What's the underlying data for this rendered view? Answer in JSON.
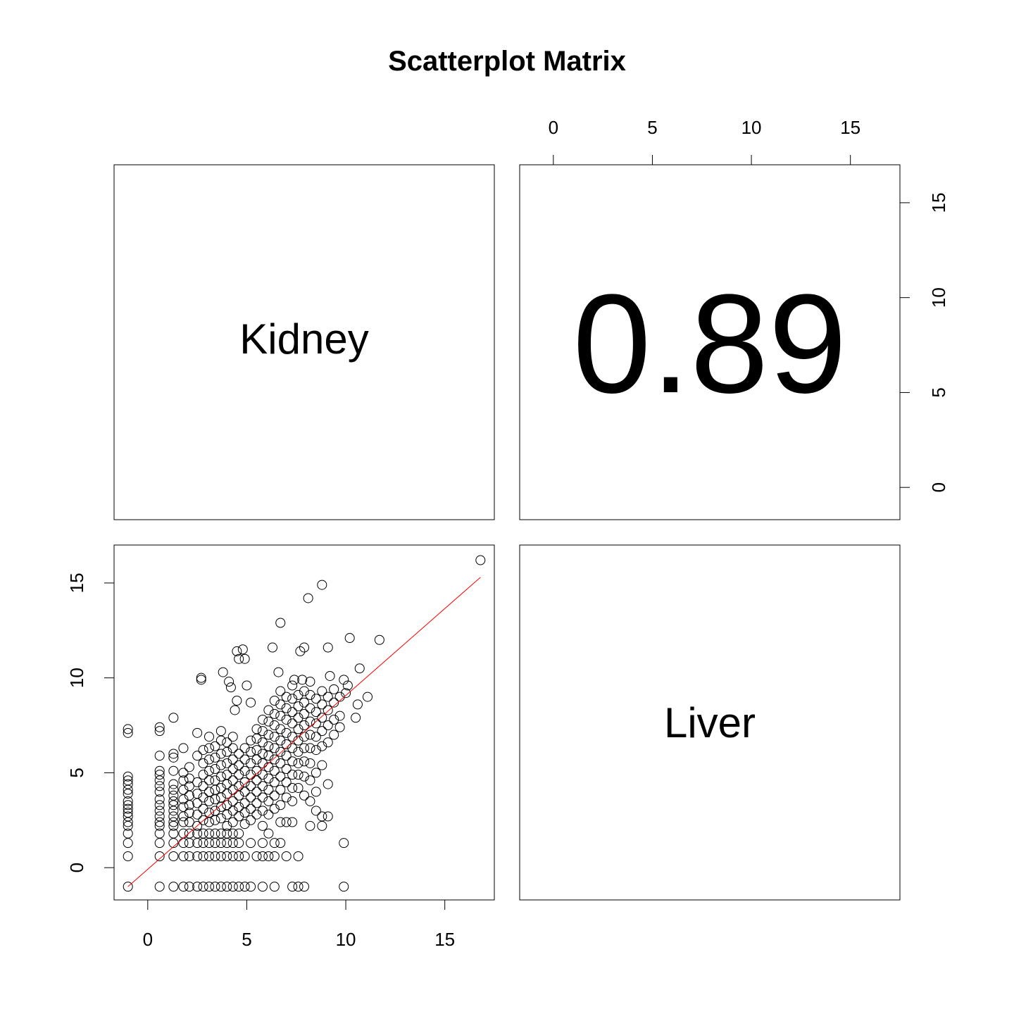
{
  "chart_data": {
    "type": "scatter",
    "title": "Scatterplot Matrix",
    "variables": [
      "Kidney",
      "Liver"
    ],
    "correlation": "0.89",
    "xlim": [
      -1.7,
      17.5
    ],
    "ylim": [
      -1.7,
      17.0
    ],
    "x_ticks": [
      "0",
      "5",
      "10",
      "15"
    ],
    "x_tick_values": [
      0,
      5,
      10,
      15
    ],
    "y_ticks": [
      "0",
      "5",
      "10",
      "15"
    ],
    "y_tick_values": [
      0,
      5,
      10,
      15
    ],
    "fit_line": {
      "x": [
        -1.0,
        16.8
      ],
      "y": [
        -1.0,
        15.3
      ],
      "color": "#ff0000"
    },
    "point_color": "#000000",
    "points": [
      [
        16.8,
        16.2
      ],
      [
        8.8,
        14.9
      ],
      [
        8.1,
        14.2
      ],
      [
        6.7,
        12.9
      ],
      [
        6.3,
        11.6
      ],
      [
        10.2,
        12.1
      ],
      [
        11.7,
        12.0
      ],
      [
        9.1,
        11.6
      ],
      [
        7.7,
        11.4
      ],
      [
        7.9,
        11.6
      ],
      [
        4.5,
        11.4
      ],
      [
        4.8,
        11.5
      ],
      [
        4.6,
        11.0
      ],
      [
        4.9,
        11.0
      ],
      [
        2.7,
        10.0
      ],
      [
        2.7,
        9.9
      ],
      [
        3.8,
        10.3
      ],
      [
        4.1,
        9.8
      ],
      [
        4.2,
        9.5
      ],
      [
        5.0,
        9.6
      ],
      [
        6.6,
        10.3
      ],
      [
        7.4,
        9.9
      ],
      [
        7.8,
        9.9
      ],
      [
        9.2,
        10.1
      ],
      [
        10.7,
        10.5
      ],
      [
        9.9,
        9.9
      ],
      [
        10.1,
        9.6
      ],
      [
        11.1,
        9.0
      ],
      [
        10.6,
        8.6
      ],
      [
        10.5,
        7.9
      ],
      [
        10.0,
        9.2
      ],
      [
        4.5,
        8.8
      ],
      [
        4.4,
        8.3
      ],
      [
        5.2,
        8.7
      ],
      [
        -1.0,
        7.3
      ],
      [
        -1.0,
        7.1
      ],
      [
        -1.0,
        4.8
      ],
      [
        -1.0,
        4.6
      ],
      [
        -1.0,
        4.4
      ],
      [
        -1.0,
        4.1
      ],
      [
        -1.0,
        3.9
      ],
      [
        -1.0,
        3.5
      ],
      [
        -1.0,
        3.3
      ],
      [
        -1.0,
        3.1
      ],
      [
        -1.0,
        2.9
      ],
      [
        -1.0,
        2.7
      ],
      [
        -1.0,
        2.4
      ],
      [
        -1.0,
        2.2
      ],
      [
        -1.0,
        1.8
      ],
      [
        -1.0,
        1.3
      ],
      [
        -1.0,
        0.6
      ],
      [
        -1.0,
        -1.0
      ],
      [
        0.6,
        7.4
      ],
      [
        0.6,
        7.2
      ],
      [
        0.6,
        5.9
      ],
      [
        0.6,
        5.1
      ],
      [
        0.6,
        4.9
      ],
      [
        0.6,
        4.6
      ],
      [
        0.6,
        4.3
      ],
      [
        0.6,
        4.0
      ],
      [
        0.6,
        3.6
      ],
      [
        0.6,
        3.3
      ],
      [
        0.6,
        3.0
      ],
      [
        0.6,
        2.7
      ],
      [
        0.6,
        2.4
      ],
      [
        0.6,
        2.2
      ],
      [
        0.6,
        1.8
      ],
      [
        0.6,
        1.3
      ],
      [
        0.6,
        0.6
      ],
      [
        0.6,
        -1.0
      ],
      [
        1.3,
        7.9
      ],
      [
        1.3,
        6.0
      ],
      [
        1.3,
        5.8
      ],
      [
        1.3,
        5.1
      ],
      [
        1.3,
        4.4
      ],
      [
        1.3,
        4.1
      ],
      [
        1.3,
        3.8
      ],
      [
        1.3,
        3.5
      ],
      [
        1.3,
        3.3
      ],
      [
        1.3,
        3.0
      ],
      [
        1.3,
        2.7
      ],
      [
        1.3,
        2.4
      ],
      [
        1.3,
        2.2
      ],
      [
        1.3,
        1.8
      ],
      [
        1.3,
        1.3
      ],
      [
        1.3,
        0.6
      ],
      [
        1.3,
        -1.0
      ],
      [
        1.8,
        6.3
      ],
      [
        1.8,
        5.0
      ],
      [
        1.8,
        4.6
      ],
      [
        1.8,
        4.1
      ],
      [
        1.8,
        3.6
      ],
      [
        1.8,
        3.2
      ],
      [
        1.8,
        2.7
      ],
      [
        1.8,
        2.4
      ],
      [
        1.8,
        1.8
      ],
      [
        1.8,
        1.3
      ],
      [
        1.8,
        0.6
      ],
      [
        1.8,
        -1.0
      ],
      [
        2.1,
        5.3
      ],
      [
        2.1,
        4.7
      ],
      [
        2.1,
        4.3
      ],
      [
        2.1,
        3.8
      ],
      [
        2.1,
        3.3
      ],
      [
        2.1,
        2.9
      ],
      [
        2.1,
        2.4
      ],
      [
        2.1,
        1.8
      ],
      [
        2.1,
        1.3
      ],
      [
        2.1,
        0.6
      ],
      [
        2.1,
        -1.0
      ],
      [
        2.5,
        7.1
      ],
      [
        2.5,
        5.9
      ],
      [
        2.5,
        4.5
      ],
      [
        2.5,
        3.9
      ],
      [
        2.5,
        3.4
      ],
      [
        2.5,
        2.8
      ],
      [
        2.5,
        2.2
      ],
      [
        2.5,
        1.8
      ],
      [
        2.5,
        1.3
      ],
      [
        2.5,
        0.6
      ],
      [
        2.5,
        -1.0
      ],
      [
        2.8,
        6.2
      ],
      [
        2.8,
        5.5
      ],
      [
        2.8,
        4.9
      ],
      [
        2.8,
        4.3
      ],
      [
        2.8,
        3.7
      ],
      [
        2.8,
        3.1
      ],
      [
        2.8,
        2.5
      ],
      [
        2.8,
        1.8
      ],
      [
        2.8,
        1.3
      ],
      [
        2.8,
        0.6
      ],
      [
        2.8,
        -1.0
      ],
      [
        3.1,
        6.9
      ],
      [
        3.1,
        6.3
      ],
      [
        3.1,
        5.7
      ],
      [
        3.1,
        5.1
      ],
      [
        3.1,
        4.6
      ],
      [
        3.1,
        4.0
      ],
      [
        3.1,
        3.5
      ],
      [
        3.1,
        2.9
      ],
      [
        3.1,
        2.4
      ],
      [
        3.1,
        1.8
      ],
      [
        3.1,
        1.3
      ],
      [
        3.1,
        0.6
      ],
      [
        3.1,
        -1.0
      ],
      [
        3.4,
        6.4
      ],
      [
        3.4,
        5.8
      ],
      [
        3.4,
        5.2
      ],
      [
        3.4,
        4.6
      ],
      [
        3.4,
        4.1
      ],
      [
        3.4,
        3.6
      ],
      [
        3.4,
        3.0
      ],
      [
        3.4,
        2.5
      ],
      [
        3.4,
        1.8
      ],
      [
        3.4,
        1.3
      ],
      [
        3.4,
        0.6
      ],
      [
        3.4,
        -1.0
      ],
      [
        3.7,
        7.2
      ],
      [
        3.7,
        6.7
      ],
      [
        3.7,
        6.0
      ],
      [
        3.7,
        5.4
      ],
      [
        3.7,
        4.8
      ],
      [
        3.7,
        4.2
      ],
      [
        3.7,
        3.7
      ],
      [
        3.7,
        3.2
      ],
      [
        3.7,
        2.6
      ],
      [
        3.7,
        1.8
      ],
      [
        3.7,
        1.3
      ],
      [
        3.7,
        0.6
      ],
      [
        3.7,
        -1.0
      ],
      [
        4.0,
        6.6
      ],
      [
        4.0,
        6.1
      ],
      [
        4.0,
        5.5
      ],
      [
        4.0,
        4.9
      ],
      [
        4.0,
        4.4
      ],
      [
        4.0,
        3.9
      ],
      [
        4.0,
        3.3
      ],
      [
        4.0,
        2.8
      ],
      [
        4.0,
        2.2
      ],
      [
        4.0,
        1.8
      ],
      [
        4.0,
        1.3
      ],
      [
        4.0,
        0.6
      ],
      [
        4.0,
        -1.0
      ],
      [
        4.3,
        6.9
      ],
      [
        4.3,
        6.3
      ],
      [
        4.3,
        5.7
      ],
      [
        4.3,
        5.2
      ],
      [
        4.3,
        4.6
      ],
      [
        4.3,
        4.1
      ],
      [
        4.3,
        3.5
      ],
      [
        4.3,
        3.0
      ],
      [
        4.3,
        2.4
      ],
      [
        4.3,
        1.8
      ],
      [
        4.3,
        1.3
      ],
      [
        4.3,
        0.6
      ],
      [
        4.3,
        -1.0
      ],
      [
        4.6,
        6.0
      ],
      [
        4.6,
        5.4
      ],
      [
        4.6,
        4.9
      ],
      [
        4.6,
        4.3
      ],
      [
        4.6,
        3.8
      ],
      [
        4.6,
        3.2
      ],
      [
        4.6,
        2.7
      ],
      [
        4.6,
        1.8
      ],
      [
        4.6,
        1.3
      ],
      [
        4.6,
        0.6
      ],
      [
        4.6,
        -1.0
      ],
      [
        4.9,
        6.3
      ],
      [
        4.9,
        5.7
      ],
      [
        4.9,
        5.1
      ],
      [
        4.9,
        4.5
      ],
      [
        4.9,
        4.0
      ],
      [
        4.9,
        3.4
      ],
      [
        4.9,
        2.9
      ],
      [
        4.9,
        2.3
      ],
      [
        4.9,
        0.6
      ],
      [
        4.9,
        -1.0
      ],
      [
        5.2,
        6.7
      ],
      [
        5.2,
        6.1
      ],
      [
        5.2,
        5.5
      ],
      [
        5.2,
        4.9
      ],
      [
        5.2,
        4.3
      ],
      [
        5.2,
        3.7
      ],
      [
        5.2,
        3.1
      ],
      [
        5.2,
        2.5
      ],
      [
        5.2,
        1.3
      ],
      [
        5.2,
        -1.0
      ],
      [
        5.5,
        7.3
      ],
      [
        5.5,
        6.8
      ],
      [
        5.5,
        6.2
      ],
      [
        5.5,
        5.7
      ],
      [
        5.5,
        5.1
      ],
      [
        5.5,
        4.6
      ],
      [
        5.5,
        4.0
      ],
      [
        5.5,
        3.4
      ],
      [
        5.5,
        2.8
      ],
      [
        5.5,
        0.6
      ],
      [
        5.8,
        7.8
      ],
      [
        5.8,
        7.2
      ],
      [
        5.8,
        6.6
      ],
      [
        5.8,
        6.0
      ],
      [
        5.8,
        5.5
      ],
      [
        5.8,
        4.9
      ],
      [
        5.8,
        4.3
      ],
      [
        5.8,
        3.7
      ],
      [
        5.8,
        3.0
      ],
      [
        5.8,
        2.2
      ],
      [
        5.8,
        1.3
      ],
      [
        5.8,
        0.6
      ],
      [
        5.8,
        -1.0
      ],
      [
        6.1,
        8.3
      ],
      [
        6.1,
        7.7
      ],
      [
        6.1,
        7.0
      ],
      [
        6.1,
        6.4
      ],
      [
        6.1,
        5.9
      ],
      [
        6.1,
        5.3
      ],
      [
        6.1,
        4.7
      ],
      [
        6.1,
        4.1
      ],
      [
        6.1,
        3.5
      ],
      [
        6.1,
        2.8
      ],
      [
        6.1,
        1.8
      ],
      [
        6.1,
        0.6
      ],
      [
        6.4,
        8.8
      ],
      [
        6.4,
        8.1
      ],
      [
        6.4,
        7.5
      ],
      [
        6.4,
        6.9
      ],
      [
        6.4,
        6.3
      ],
      [
        6.4,
        5.7
      ],
      [
        6.4,
        5.1
      ],
      [
        6.4,
        4.5
      ],
      [
        6.4,
        3.8
      ],
      [
        6.4,
        3.1
      ],
      [
        6.4,
        1.3
      ],
      [
        6.4,
        0.6
      ],
      [
        6.4,
        -1.0
      ],
      [
        6.7,
        9.3
      ],
      [
        6.7,
        8.6
      ],
      [
        6.7,
        8.0
      ],
      [
        6.7,
        7.3
      ],
      [
        6.7,
        6.7
      ],
      [
        6.7,
        6.1
      ],
      [
        6.7,
        5.5
      ],
      [
        6.7,
        4.8
      ],
      [
        6.7,
        4.1
      ],
      [
        6.7,
        3.3
      ],
      [
        6.7,
        2.4
      ],
      [
        6.7,
        1.3
      ],
      [
        7.0,
        9.0
      ],
      [
        7.0,
        8.4
      ],
      [
        7.0,
        7.8
      ],
      [
        7.0,
        7.1
      ],
      [
        7.0,
        6.5
      ],
      [
        7.0,
        5.9
      ],
      [
        7.0,
        5.2
      ],
      [
        7.0,
        4.5
      ],
      [
        7.0,
        3.7
      ],
      [
        7.0,
        2.4
      ],
      [
        7.0,
        0.6
      ],
      [
        7.3,
        9.6
      ],
      [
        7.3,
        8.9
      ],
      [
        7.3,
        8.2
      ],
      [
        7.3,
        7.6
      ],
      [
        7.3,
        6.9
      ],
      [
        7.3,
        6.3
      ],
      [
        7.3,
        5.6
      ],
      [
        7.3,
        4.9
      ],
      [
        7.3,
        4.2
      ],
      [
        7.3,
        3.5
      ],
      [
        7.3,
        2.4
      ],
      [
        7.3,
        -1.0
      ],
      [
        7.6,
        9.1
      ],
      [
        7.6,
        8.5
      ],
      [
        7.6,
        7.9
      ],
      [
        7.6,
        7.3
      ],
      [
        7.6,
        6.7
      ],
      [
        7.6,
        6.1
      ],
      [
        7.6,
        5.5
      ],
      [
        7.6,
        4.9
      ],
      [
        7.6,
        4.2
      ],
      [
        7.6,
        0.6
      ],
      [
        7.6,
        -1.0
      ],
      [
        7.9,
        9.3
      ],
      [
        7.9,
        8.7
      ],
      [
        7.9,
        8.1
      ],
      [
        7.9,
        7.5
      ],
      [
        7.9,
        6.9
      ],
      [
        7.9,
        6.3
      ],
      [
        7.9,
        5.6
      ],
      [
        7.9,
        4.8
      ],
      [
        7.9,
        3.8
      ],
      [
        7.9,
        -1.0
      ],
      [
        8.2,
        9.8
      ],
      [
        8.2,
        9.1
      ],
      [
        8.2,
        8.4
      ],
      [
        8.2,
        7.7
      ],
      [
        8.2,
        7.0
      ],
      [
        8.2,
        6.3
      ],
      [
        8.2,
        5.5
      ],
      [
        8.2,
        4.6
      ],
      [
        8.2,
        3.5
      ],
      [
        8.2,
        2.2
      ],
      [
        8.5,
        8.9
      ],
      [
        8.5,
        8.2
      ],
      [
        8.5,
        7.6
      ],
      [
        8.5,
        6.9
      ],
      [
        8.5,
        6.2
      ],
      [
        8.5,
        5.0
      ],
      [
        8.5,
        4.0
      ],
      [
        8.5,
        3.0
      ],
      [
        8.8,
        9.3
      ],
      [
        8.8,
        8.6
      ],
      [
        8.8,
        7.9
      ],
      [
        8.8,
        7.2
      ],
      [
        8.8,
        6.4
      ],
      [
        8.8,
        5.4
      ],
      [
        8.8,
        2.7
      ],
      [
        8.8,
        2.2
      ],
      [
        9.1,
        9.0
      ],
      [
        9.1,
        8.3
      ],
      [
        9.1,
        7.5
      ],
      [
        9.1,
        6.6
      ],
      [
        9.1,
        4.4
      ],
      [
        9.1,
        2.7
      ],
      [
        9.4,
        9.4
      ],
      [
        9.4,
        8.7
      ],
      [
        9.4,
        7.8
      ],
      [
        9.4,
        7.0
      ],
      [
        9.7,
        9.0
      ],
      [
        9.7,
        8.0
      ],
      [
        9.7,
        7.4
      ],
      [
        9.9,
        1.3
      ],
      [
        9.9,
        -1.0
      ]
    ]
  }
}
